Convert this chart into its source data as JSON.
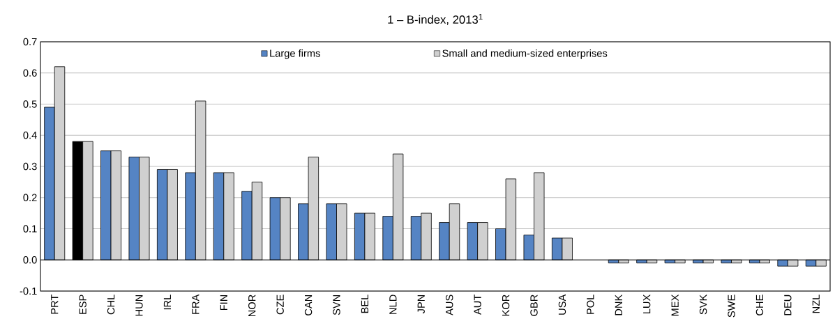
{
  "chart_data": {
    "type": "bar",
    "title": "1 – B-index, 2013$^{1}$",
    "categories": [
      "PRT",
      "ESP",
      "CHL",
      "HUN",
      "IRL",
      "FRA",
      "FIN",
      "NOR",
      "CZE",
      "CAN",
      "SVN",
      "BEL",
      "NLD",
      "JPN",
      "AUS",
      "AUT",
      "KOR",
      "GBR",
      "USA",
      "POL",
      "DNK",
      "LUX",
      "MEX",
      "SVK",
      "SWE",
      "CHE",
      "DEU",
      "NZL"
    ],
    "series": [
      {
        "name": "Large firms",
        "color": "#5584c4",
        "colors": [
          "#5584c4",
          "#000000",
          "#5584c4",
          "#5584c4",
          "#5584c4",
          "#5584c4",
          "#5584c4",
          "#5584c4",
          "#5584c4",
          "#5584c4",
          "#5584c4",
          "#5584c4",
          "#5584c4",
          "#5584c4",
          "#5584c4",
          "#5584c4",
          "#5584c4",
          "#5584c4",
          "#5584c4",
          "#5584c4",
          "#5584c4",
          "#5584c4",
          "#5584c4",
          "#5584c4",
          "#5584c4",
          "#5584c4",
          "#5584c4",
          "#5584c4"
        ],
        "values": [
          0.49,
          0.38,
          0.35,
          0.33,
          0.29,
          0.28,
          0.28,
          0.22,
          0.2,
          0.18,
          0.18,
          0.15,
          0.14,
          0.14,
          0.12,
          0.12,
          0.1,
          0.08,
          0.07,
          null,
          -0.01,
          -0.01,
          -0.01,
          -0.01,
          -0.01,
          -0.01,
          -0.02,
          -0.02
        ]
      },
      {
        "name": "Small and medium-sized enterprises",
        "color": "#d0d0d0",
        "values": [
          0.62,
          0.38,
          0.35,
          0.33,
          0.29,
          0.51,
          0.28,
          0.25,
          0.2,
          0.33,
          0.18,
          0.15,
          0.34,
          0.15,
          0.18,
          0.12,
          0.26,
          0.28,
          0.07,
          null,
          -0.01,
          -0.01,
          -0.01,
          -0.01,
          -0.01,
          -0.01,
          -0.02,
          -0.02
        ]
      }
    ],
    "ylim": [
      -0.1,
      0.7
    ],
    "yticks": [
      {
        "value": -0.1,
        "label": "-0.1"
      },
      {
        "value": 0,
        "label": "0.0"
      },
      0.1,
      0.2,
      0.3,
      0.4,
      0.5,
      0.6,
      0.7
    ],
    "grid": "y",
    "legend": "top"
  }
}
